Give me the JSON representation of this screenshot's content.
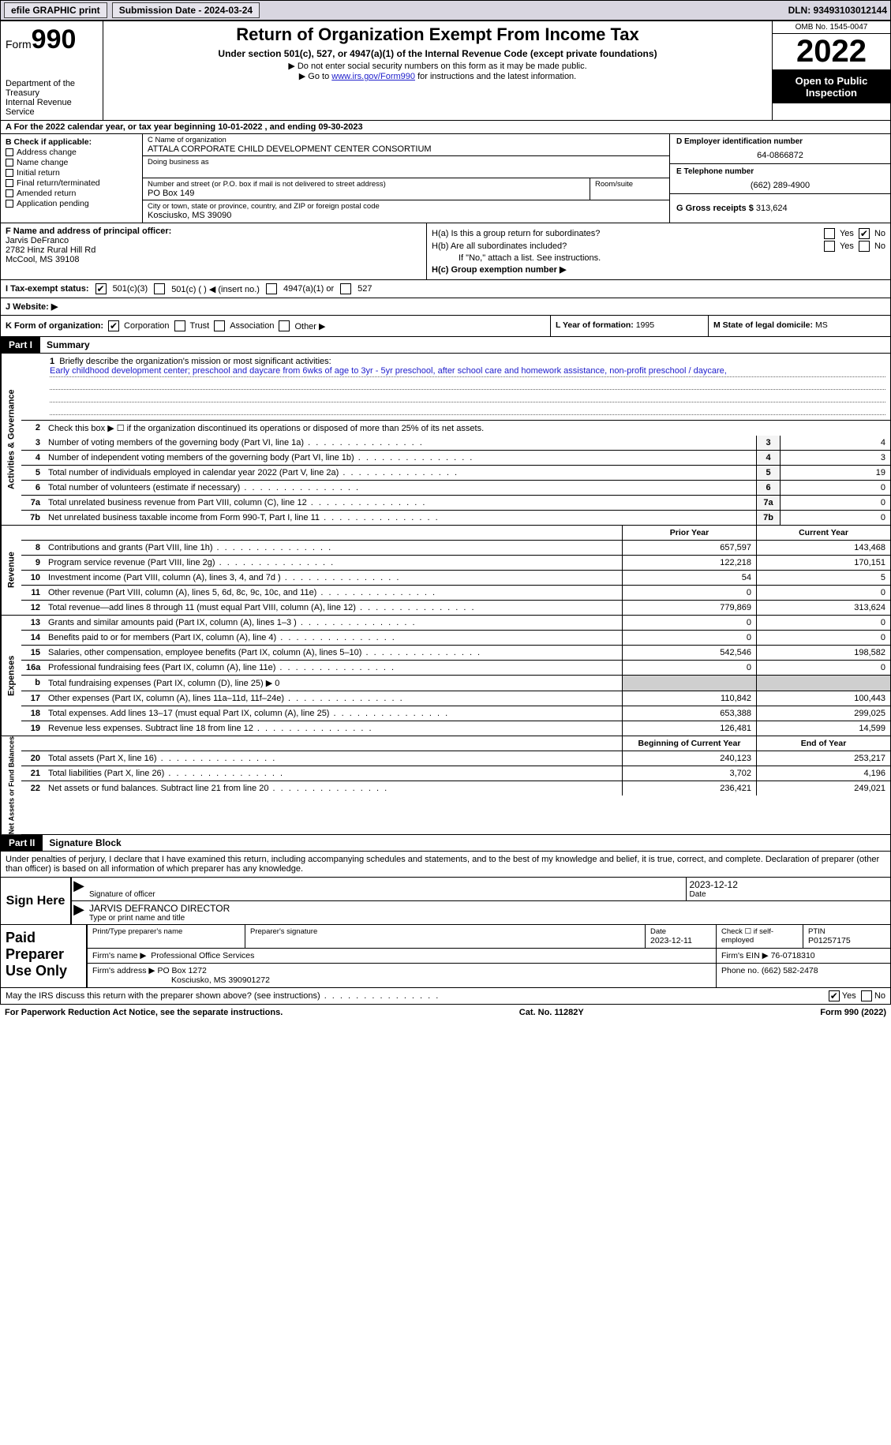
{
  "topbar": {
    "efile": "efile GRAPHIC print",
    "submission_label": "Submission Date - 2024-03-24",
    "dln": "DLN: 93493103012144"
  },
  "header": {
    "form_word": "Form",
    "form_num": "990",
    "dept": "Department of the Treasury",
    "irs": "Internal Revenue Service",
    "title": "Return of Organization Exempt From Income Tax",
    "subtitle": "Under section 501(c), 527, or 4947(a)(1) of the Internal Revenue Code (except private foundations)",
    "note1": "▶ Do not enter social security numbers on this form as it may be made public.",
    "note2_pre": "▶ Go to ",
    "note2_link": "www.irs.gov/Form990",
    "note2_post": " for instructions and the latest information.",
    "omb": "OMB No. 1545-0047",
    "year": "2022",
    "open": "Open to Public Inspection"
  },
  "rowA": "A For the 2022 calendar year, or tax year beginning 10-01-2022    , and ending 09-30-2023",
  "boxB": {
    "hd": "B Check if applicable:",
    "opts": [
      "Address change",
      "Name change",
      "Initial return",
      "Final return/terminated",
      "Amended return",
      "Application pending"
    ]
  },
  "boxC": {
    "name_lbl": "C Name of organization",
    "name": "ATTALA CORPORATE CHILD DEVELOPMENT CENTER CONSORTIUM",
    "dba_lbl": "Doing business as",
    "dba": "",
    "street_lbl": "Number and street (or P.O. box if mail is not delivered to street address)",
    "room_lbl": "Room/suite",
    "street": "PO Box 149",
    "city_lbl": "City or town, state or province, country, and ZIP or foreign postal code",
    "city": "Kosciusko, MS  39090"
  },
  "boxD": {
    "lbl": "D Employer identification number",
    "val": "64-0866872"
  },
  "boxE": {
    "lbl": "E Telephone number",
    "val": "(662) 289-4900"
  },
  "boxG": {
    "lbl": "G Gross receipts $",
    "val": "313,624"
  },
  "boxF": {
    "lbl": "F  Name and address of principal officer:",
    "name": "Jarvis DeFranco",
    "addr1": "2782 Hinz Rural Hill Rd",
    "addr2": "McCool, MS  39108"
  },
  "boxH": {
    "ha": "H(a)  Is this a group return for subordinates?",
    "hb": "H(b)  Are all subordinates included?",
    "hb_note": "If \"No,\" attach a list. See instructions.",
    "hc": "H(c)  Group exemption number ▶",
    "yes": "Yes",
    "no": "No"
  },
  "boxI": {
    "lbl": "I  Tax-exempt status:",
    "o1": "501(c)(3)",
    "o2": "501(c) (   ) ◀ (insert no.)",
    "o3": "4947(a)(1) or",
    "o4": "527"
  },
  "boxJ": {
    "lbl": "J  Website: ▶",
    "val": ""
  },
  "boxK": {
    "lbl": "K Form of organization:",
    "o1": "Corporation",
    "o2": "Trust",
    "o3": "Association",
    "o4": "Other ▶"
  },
  "boxL": {
    "lbl": "L Year of formation:",
    "val": "1995"
  },
  "boxM": {
    "lbl": "M State of legal domicile:",
    "val": "MS"
  },
  "parts": {
    "p1": "Part I",
    "p1t": "Summary",
    "p2": "Part II",
    "p2t": "Signature Block"
  },
  "summary": {
    "q1": "Briefly describe the organization's mission or most significant activities:",
    "mission": "Early childhood development center; preschool and daycare from 6wks of age to 3yr - 5yr preschool, after school care and homework assistance, non-profit preschool / daycare,",
    "q2": "Check this box ▶ ☐  if the organization discontinued its operations or disposed of more than 25% of its net assets.",
    "rows_a": [
      {
        "n": "3",
        "t": "Number of voting members of the governing body (Part VI, line 1a)",
        "box": "3",
        "v": "4"
      },
      {
        "n": "4",
        "t": "Number of independent voting members of the governing body (Part VI, line 1b)",
        "box": "4",
        "v": "3"
      },
      {
        "n": "5",
        "t": "Total number of individuals employed in calendar year 2022 (Part V, line 2a)",
        "box": "5",
        "v": "19"
      },
      {
        "n": "6",
        "t": "Total number of volunteers (estimate if necessary)",
        "box": "6",
        "v": "0"
      },
      {
        "n": "7a",
        "t": "Total unrelated business revenue from Part VIII, column (C), line 12",
        "box": "7a",
        "v": "0"
      },
      {
        "n": "7b",
        "t": "Net unrelated business taxable income from Form 990-T, Part I, line 11",
        "box": "7b",
        "v": "0"
      }
    ],
    "colhdr1": "Prior Year",
    "colhdr2": "Current Year",
    "revenue": [
      {
        "n": "8",
        "t": "Contributions and grants (Part VIII, line 1h)",
        "c1": "657,597",
        "c2": "143,468"
      },
      {
        "n": "9",
        "t": "Program service revenue (Part VIII, line 2g)",
        "c1": "122,218",
        "c2": "170,151"
      },
      {
        "n": "10",
        "t": "Investment income (Part VIII, column (A), lines 3, 4, and 7d )",
        "c1": "54",
        "c2": "5"
      },
      {
        "n": "11",
        "t": "Other revenue (Part VIII, column (A), lines 5, 6d, 8c, 9c, 10c, and 11e)",
        "c1": "0",
        "c2": "0"
      },
      {
        "n": "12",
        "t": "Total revenue—add lines 8 through 11 (must equal Part VIII, column (A), line 12)",
        "c1": "779,869",
        "c2": "313,624"
      }
    ],
    "expenses": [
      {
        "n": "13",
        "t": "Grants and similar amounts paid (Part IX, column (A), lines 1–3 )",
        "c1": "0",
        "c2": "0"
      },
      {
        "n": "14",
        "t": "Benefits paid to or for members (Part IX, column (A), line 4)",
        "c1": "0",
        "c2": "0"
      },
      {
        "n": "15",
        "t": "Salaries, other compensation, employee benefits (Part IX, column (A), lines 5–10)",
        "c1": "542,546",
        "c2": "198,582"
      },
      {
        "n": "16a",
        "t": "Professional fundraising fees (Part IX, column (A), line 11e)",
        "c1": "0",
        "c2": "0"
      },
      {
        "n": "b",
        "t": "Total fundraising expenses (Part IX, column (D), line 25) ▶ 0",
        "c1": "",
        "c2": "",
        "shaded": true
      },
      {
        "n": "17",
        "t": "Other expenses (Part IX, column (A), lines 11a–11d, 11f–24e)",
        "c1": "110,842",
        "c2": "100,443"
      },
      {
        "n": "18",
        "t": "Total expenses. Add lines 13–17 (must equal Part IX, column (A), line 25)",
        "c1": "653,388",
        "c2": "299,025"
      },
      {
        "n": "19",
        "t": "Revenue less expenses. Subtract line 18 from line 12",
        "c1": "126,481",
        "c2": "14,599"
      }
    ],
    "colhdr3": "Beginning of Current Year",
    "colhdr4": "End of Year",
    "netassets": [
      {
        "n": "20",
        "t": "Total assets (Part X, line 16)",
        "c1": "240,123",
        "c2": "253,217"
      },
      {
        "n": "21",
        "t": "Total liabilities (Part X, line 26)",
        "c1": "3,702",
        "c2": "4,196"
      },
      {
        "n": "22",
        "t": "Net assets or fund balances. Subtract line 21 from line 20",
        "c1": "236,421",
        "c2": "249,021"
      }
    ],
    "vlabels": {
      "act": "Activities & Governance",
      "rev": "Revenue",
      "exp": "Expenses",
      "net": "Net Assets or Fund Balances"
    }
  },
  "sig": {
    "intro": "Under penalties of perjury, I declare that I have examined this return, including accompanying schedules and statements, and to the best of my knowledge and belief, it is true, correct, and complete. Declaration of preparer (other than officer) is based on all information of which preparer has any knowledge.",
    "sign_here": "Sign Here",
    "sig_of_officer": "Signature of officer",
    "date": "Date",
    "date_val": "2023-12-12",
    "name_title_lbl": "Type or print name and title",
    "name_title": "JARVIS DEFRANCO  DIRECTOR"
  },
  "prep": {
    "label": "Paid Preparer Use Only",
    "print_lbl": "Print/Type preparer's name",
    "print_val": "",
    "sig_lbl": "Preparer's signature",
    "date_lbl": "Date",
    "date_val": "2023-12-11",
    "check_lbl": "Check ☐ if self-employed",
    "ptin_lbl": "PTIN",
    "ptin_val": "P01257175",
    "firm_name_lbl": "Firm's name    ▶",
    "firm_name": "Professional Office Services",
    "firm_ein_lbl": "Firm's EIN ▶",
    "firm_ein": "76-0718310",
    "firm_addr_lbl": "Firm's address ▶",
    "firm_addr1": "PO Box 1272",
    "firm_addr2": "Kosciusko, MS  390901272",
    "phone_lbl": "Phone no.",
    "phone": "(662) 582-2478"
  },
  "footer": {
    "discuss": "May the IRS discuss this return with the preparer shown above? (see instructions)",
    "yes": "Yes",
    "no": "No",
    "paperwork": "For Paperwork Reduction Act Notice, see the separate instructions.",
    "cat": "Cat. No. 11282Y",
    "form": "Form 990 (2022)"
  },
  "colors": {
    "topbar_bg": "#d8d6e0",
    "link": "#2020cc",
    "black": "#000000",
    "shade": "#cfcfcf"
  }
}
